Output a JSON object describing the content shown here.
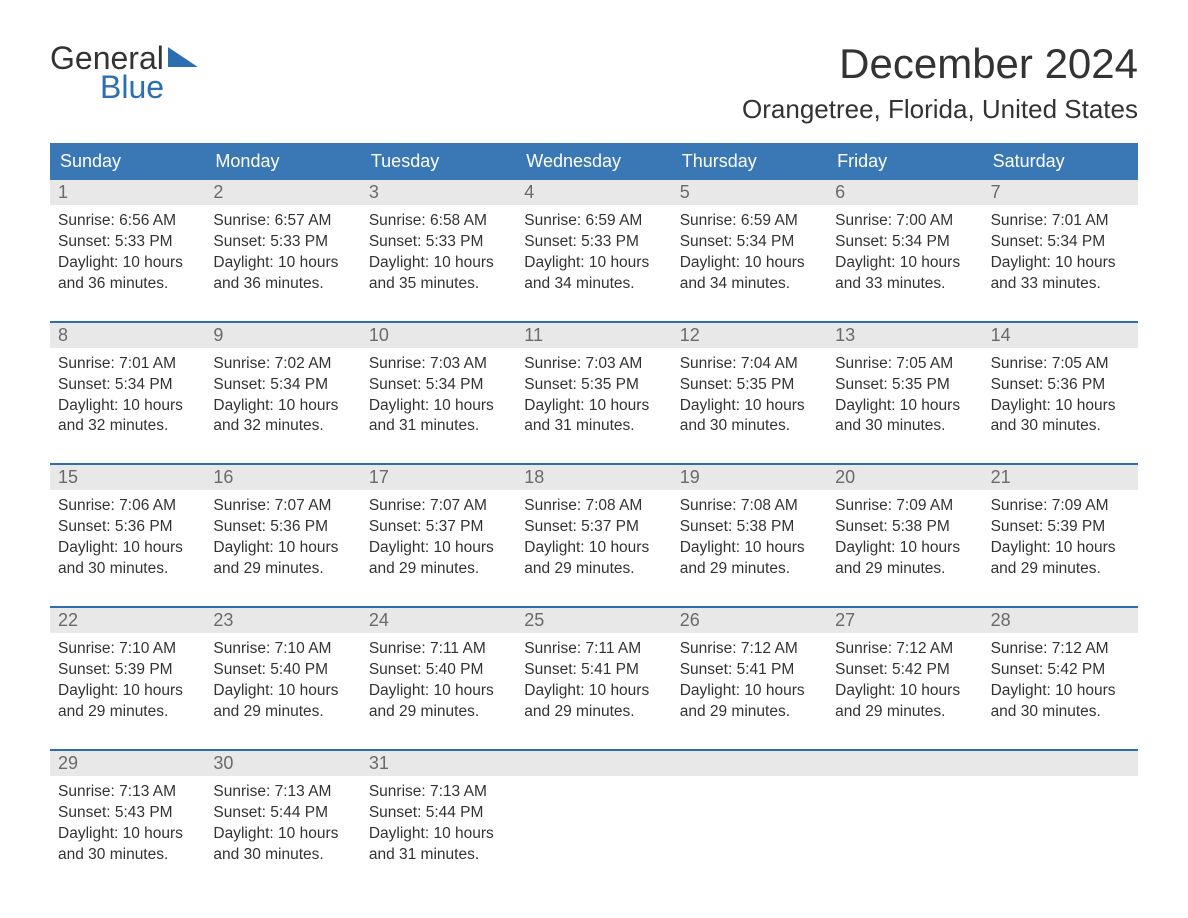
{
  "logo": {
    "word1": "General",
    "word2": "Blue"
  },
  "title": "December 2024",
  "location": "Orangetree, Florida, United States",
  "header_bg": "#3a78b5",
  "header_text": "#ffffff",
  "accent_border": "#2c6fb0",
  "daynum_bg": "#e8e8e8",
  "days": [
    "Sunday",
    "Monday",
    "Tuesday",
    "Wednesday",
    "Thursday",
    "Friday",
    "Saturday"
  ],
  "weeks": [
    [
      {
        "n": "1",
        "sunrise": "Sunrise: 6:56 AM",
        "sunset": "Sunset: 5:33 PM",
        "daylight": "Daylight: 10 hours and 36 minutes."
      },
      {
        "n": "2",
        "sunrise": "Sunrise: 6:57 AM",
        "sunset": "Sunset: 5:33 PM",
        "daylight": "Daylight: 10 hours and 36 minutes."
      },
      {
        "n": "3",
        "sunrise": "Sunrise: 6:58 AM",
        "sunset": "Sunset: 5:33 PM",
        "daylight": "Daylight: 10 hours and 35 minutes."
      },
      {
        "n": "4",
        "sunrise": "Sunrise: 6:59 AM",
        "sunset": "Sunset: 5:33 PM",
        "daylight": "Daylight: 10 hours and 34 minutes."
      },
      {
        "n": "5",
        "sunrise": "Sunrise: 6:59 AM",
        "sunset": "Sunset: 5:34 PM",
        "daylight": "Daylight: 10 hours and 34 minutes."
      },
      {
        "n": "6",
        "sunrise": "Sunrise: 7:00 AM",
        "sunset": "Sunset: 5:34 PM",
        "daylight": "Daylight: 10 hours and 33 minutes."
      },
      {
        "n": "7",
        "sunrise": "Sunrise: 7:01 AM",
        "sunset": "Sunset: 5:34 PM",
        "daylight": "Daylight: 10 hours and 33 minutes."
      }
    ],
    [
      {
        "n": "8",
        "sunrise": "Sunrise: 7:01 AM",
        "sunset": "Sunset: 5:34 PM",
        "daylight": "Daylight: 10 hours and 32 minutes."
      },
      {
        "n": "9",
        "sunrise": "Sunrise: 7:02 AM",
        "sunset": "Sunset: 5:34 PM",
        "daylight": "Daylight: 10 hours and 32 minutes."
      },
      {
        "n": "10",
        "sunrise": "Sunrise: 7:03 AM",
        "sunset": "Sunset: 5:34 PM",
        "daylight": "Daylight: 10 hours and 31 minutes."
      },
      {
        "n": "11",
        "sunrise": "Sunrise: 7:03 AM",
        "sunset": "Sunset: 5:35 PM",
        "daylight": "Daylight: 10 hours and 31 minutes."
      },
      {
        "n": "12",
        "sunrise": "Sunrise: 7:04 AM",
        "sunset": "Sunset: 5:35 PM",
        "daylight": "Daylight: 10 hours and 30 minutes."
      },
      {
        "n": "13",
        "sunrise": "Sunrise: 7:05 AM",
        "sunset": "Sunset: 5:35 PM",
        "daylight": "Daylight: 10 hours and 30 minutes."
      },
      {
        "n": "14",
        "sunrise": "Sunrise: 7:05 AM",
        "sunset": "Sunset: 5:36 PM",
        "daylight": "Daylight: 10 hours and 30 minutes."
      }
    ],
    [
      {
        "n": "15",
        "sunrise": "Sunrise: 7:06 AM",
        "sunset": "Sunset: 5:36 PM",
        "daylight": "Daylight: 10 hours and 30 minutes."
      },
      {
        "n": "16",
        "sunrise": "Sunrise: 7:07 AM",
        "sunset": "Sunset: 5:36 PM",
        "daylight": "Daylight: 10 hours and 29 minutes."
      },
      {
        "n": "17",
        "sunrise": "Sunrise: 7:07 AM",
        "sunset": "Sunset: 5:37 PM",
        "daylight": "Daylight: 10 hours and 29 minutes."
      },
      {
        "n": "18",
        "sunrise": "Sunrise: 7:08 AM",
        "sunset": "Sunset: 5:37 PM",
        "daylight": "Daylight: 10 hours and 29 minutes."
      },
      {
        "n": "19",
        "sunrise": "Sunrise: 7:08 AM",
        "sunset": "Sunset: 5:38 PM",
        "daylight": "Daylight: 10 hours and 29 minutes."
      },
      {
        "n": "20",
        "sunrise": "Sunrise: 7:09 AM",
        "sunset": "Sunset: 5:38 PM",
        "daylight": "Daylight: 10 hours and 29 minutes."
      },
      {
        "n": "21",
        "sunrise": "Sunrise: 7:09 AM",
        "sunset": "Sunset: 5:39 PM",
        "daylight": "Daylight: 10 hours and 29 minutes."
      }
    ],
    [
      {
        "n": "22",
        "sunrise": "Sunrise: 7:10 AM",
        "sunset": "Sunset: 5:39 PM",
        "daylight": "Daylight: 10 hours and 29 minutes."
      },
      {
        "n": "23",
        "sunrise": "Sunrise: 7:10 AM",
        "sunset": "Sunset: 5:40 PM",
        "daylight": "Daylight: 10 hours and 29 minutes."
      },
      {
        "n": "24",
        "sunrise": "Sunrise: 7:11 AM",
        "sunset": "Sunset: 5:40 PM",
        "daylight": "Daylight: 10 hours and 29 minutes."
      },
      {
        "n": "25",
        "sunrise": "Sunrise: 7:11 AM",
        "sunset": "Sunset: 5:41 PM",
        "daylight": "Daylight: 10 hours and 29 minutes."
      },
      {
        "n": "26",
        "sunrise": "Sunrise: 7:12 AM",
        "sunset": "Sunset: 5:41 PM",
        "daylight": "Daylight: 10 hours and 29 minutes."
      },
      {
        "n": "27",
        "sunrise": "Sunrise: 7:12 AM",
        "sunset": "Sunset: 5:42 PM",
        "daylight": "Daylight: 10 hours and 29 minutes."
      },
      {
        "n": "28",
        "sunrise": "Sunrise: 7:12 AM",
        "sunset": "Sunset: 5:42 PM",
        "daylight": "Daylight: 10 hours and 30 minutes."
      }
    ],
    [
      {
        "n": "29",
        "sunrise": "Sunrise: 7:13 AM",
        "sunset": "Sunset: 5:43 PM",
        "daylight": "Daylight: 10 hours and 30 minutes."
      },
      {
        "n": "30",
        "sunrise": "Sunrise: 7:13 AM",
        "sunset": "Sunset: 5:44 PM",
        "daylight": "Daylight: 10 hours and 30 minutes."
      },
      {
        "n": "31",
        "sunrise": "Sunrise: 7:13 AM",
        "sunset": "Sunset: 5:44 PM",
        "daylight": "Daylight: 10 hours and 31 minutes."
      },
      null,
      null,
      null,
      null
    ]
  ]
}
